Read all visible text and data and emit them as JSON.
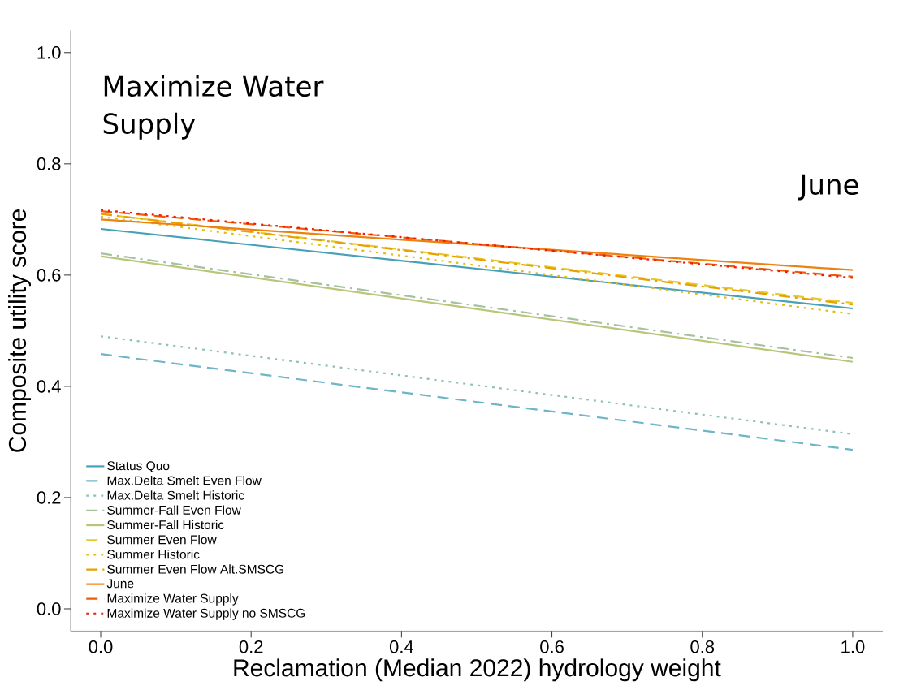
{
  "chart_data": {
    "type": "line",
    "xlabel": "Reclamation (Median 2022) hydrology weight",
    "ylabel": "Composite utility score",
    "annotations": [
      "Maximize Water Supply",
      "June"
    ],
    "x": [
      0,
      1
    ],
    "series": [
      {
        "name": "Status Quo",
        "color": "#46a0b9",
        "line_style": "solid",
        "values": [
          0.683,
          0.54
        ]
      },
      {
        "name": "Max.Delta Smelt Even Flow",
        "color": "#6fb5c8",
        "line_style": "dashed",
        "values": [
          0.458,
          0.286
        ]
      },
      {
        "name": "Max.Delta Smelt Historic",
        "color": "#8fc0b8",
        "line_style": "dotted",
        "values": [
          0.49,
          0.314
        ]
      },
      {
        "name": "Summer-Fall Even Flow",
        "color": "#a6c0a0",
        "line_style": "dashdot",
        "values": [
          0.639,
          0.451
        ]
      },
      {
        "name": "Summer-Fall Historic",
        "color": "#b9c67a",
        "line_style": "solid",
        "values": [
          0.634,
          0.444
        ]
      },
      {
        "name": "Summer Even Flow",
        "color": "#e5c92d",
        "line_style": "dashed",
        "values": [
          0.71,
          0.55
        ]
      },
      {
        "name": "Summer Historic",
        "color": "#e6bb10",
        "line_style": "dotted",
        "values": [
          0.705,
          0.53
        ]
      },
      {
        "name": "Summer Even Flow Alt.SMSCG",
        "color": "#e8a000",
        "line_style": "dashdot",
        "values": [
          0.71,
          0.547
        ]
      },
      {
        "name": "June",
        "color": "#ec8210",
        "line_style": "solid",
        "values": [
          0.7,
          0.609
        ]
      },
      {
        "name": "Maximize Water Supply",
        "color": "#f05a0a",
        "line_style": "dashed",
        "values": [
          0.715,
          0.597
        ]
      },
      {
        "name": "Maximize Water Supply no SMSCG",
        "color": "#f21a00",
        "line_style": "dotted",
        "values": [
          0.717,
          0.595
        ]
      }
    ],
    "xlim": [
      -0.04,
      1.04
    ],
    "ylim": [
      -0.04,
      1.04
    ],
    "xticks": [
      {
        "value": 0,
        "label": "0.0"
      },
      {
        "value": 0.2,
        "label": "0.2"
      },
      {
        "value": 0.4,
        "label": "0.4"
      },
      {
        "value": 0.6,
        "label": "0.6"
      },
      {
        "value": 0.8,
        "label": "0.8"
      },
      {
        "value": 1,
        "label": "1.0"
      }
    ],
    "yticks": [
      {
        "value": 0,
        "label": "0.0"
      },
      {
        "value": 0.2,
        "label": "0.2"
      },
      {
        "value": 0.4,
        "label": "0.4"
      },
      {
        "value": 0.6,
        "label": "0.6"
      },
      {
        "value": 0.8,
        "label": "0.8"
      },
      {
        "value": 1,
        "label": "1.0"
      }
    ],
    "grid": false,
    "legend": "bottom left"
  }
}
